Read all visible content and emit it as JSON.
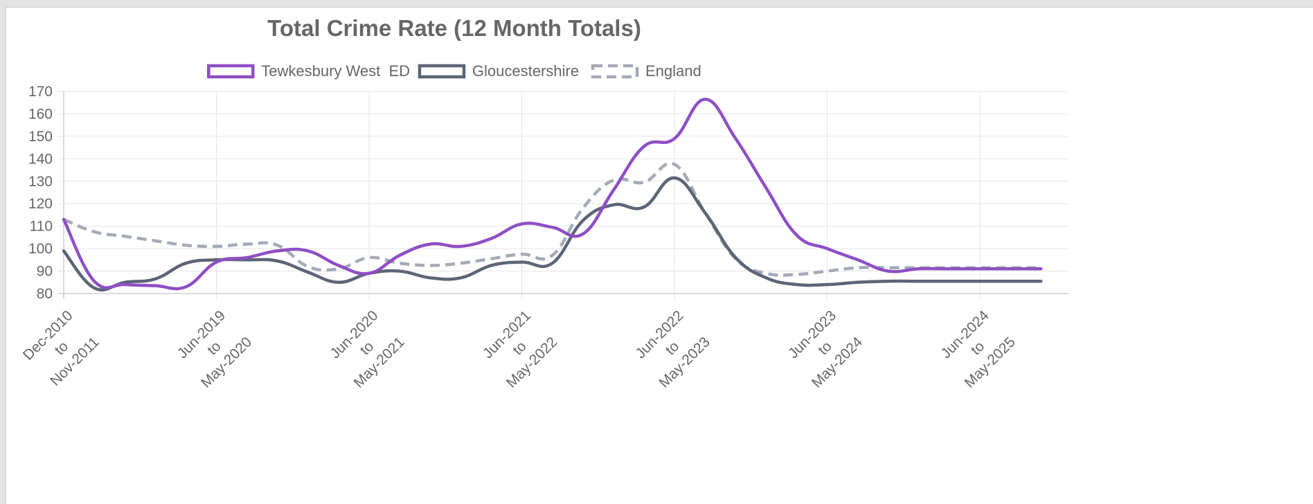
{
  "chart_data": {
    "type": "line",
    "title": "Total Crime Rate (12 Month Totals)",
    "xlabel": "",
    "ylabel": "",
    "ylim": [
      80,
      170
    ],
    "yticks": [
      170,
      160,
      150,
      140,
      130,
      120,
      110,
      100,
      90,
      80
    ],
    "grid": true,
    "legend_position": "top-center",
    "categories": [
      "Dec-2010 to Nov-2011",
      "",
      "",
      "",
      "",
      "Jun-2019 to May-2020",
      "",
      "",
      "",
      "",
      "Jun-2020 to May-2021",
      "",
      "",
      "",
      "",
      "Jun-2021 to May-2022",
      "",
      "",
      "",
      "",
      "Jun-2022 to May-2023",
      "",
      "",
      "",
      "",
      "Jun-2023 to May-2024",
      "",
      "",
      "",
      "",
      "Jun-2024 to May-2025",
      "",
      ""
    ],
    "tick_labels": [
      {
        "index": 0,
        "line1": "Dec-2010",
        "line2": "to",
        "line3": "Nov-2011"
      },
      {
        "index": 5,
        "line1": "Jun-2019",
        "line2": "to",
        "line3": "May-2020"
      },
      {
        "index": 10,
        "line1": "Jun-2020",
        "line2": "to",
        "line3": "May-2021"
      },
      {
        "index": 15,
        "line1": "Jun-2021",
        "line2": "to",
        "line3": "May-2022"
      },
      {
        "index": 20,
        "line1": "Jun-2022",
        "line2": "to",
        "line3": "May-2023"
      },
      {
        "index": 25,
        "line1": "Jun-2023",
        "line2": "to",
        "line3": "May-2024"
      },
      {
        "index": 30,
        "line1": "Jun-2024",
        "line2": "to",
        "line3": "May-2025"
      }
    ],
    "series": [
      {
        "name": "Tewkesbury West  ED",
        "color": "#8e4fc4",
        "dashed": false,
        "values": [
          113,
          85.5,
          84,
          83.5,
          83,
          94,
          96,
          99,
          99,
          92.5,
          89,
          97,
          102,
          101,
          104.5,
          111,
          109.5,
          106.5,
          126,
          145.5,
          149,
          166.5,
          149,
          127,
          106,
          100,
          95,
          90,
          91,
          91,
          91,
          91,
          91
        ]
      },
      {
        "name": "Gloucestershire",
        "color": "#5b6577",
        "dashed": false,
        "values": [
          99,
          82.5,
          85,
          86.5,
          93.5,
          95,
          95,
          94.5,
          89.5,
          85,
          89,
          90,
          87,
          87,
          92.5,
          94,
          93.5,
          112.5,
          119.5,
          118.5,
          131.5,
          116,
          96,
          87,
          84,
          84,
          85,
          85.5,
          85.5,
          85.5,
          85.5,
          85.5,
          85.5
        ]
      },
      {
        "name": "England",
        "color": "#a3abb7",
        "dashed": true,
        "values": [
          113,
          107.5,
          105.5,
          103.5,
          101.5,
          101,
          102,
          101.5,
          92,
          91,
          96,
          93.5,
          92.5,
          93.5,
          95.5,
          97.5,
          97,
          118,
          130.5,
          129.5,
          137.5,
          116,
          95.5,
          89,
          88.5,
          90,
          91.5,
          91.5,
          91.5,
          91.5,
          91.5,
          91.5,
          91.5
        ]
      }
    ]
  }
}
